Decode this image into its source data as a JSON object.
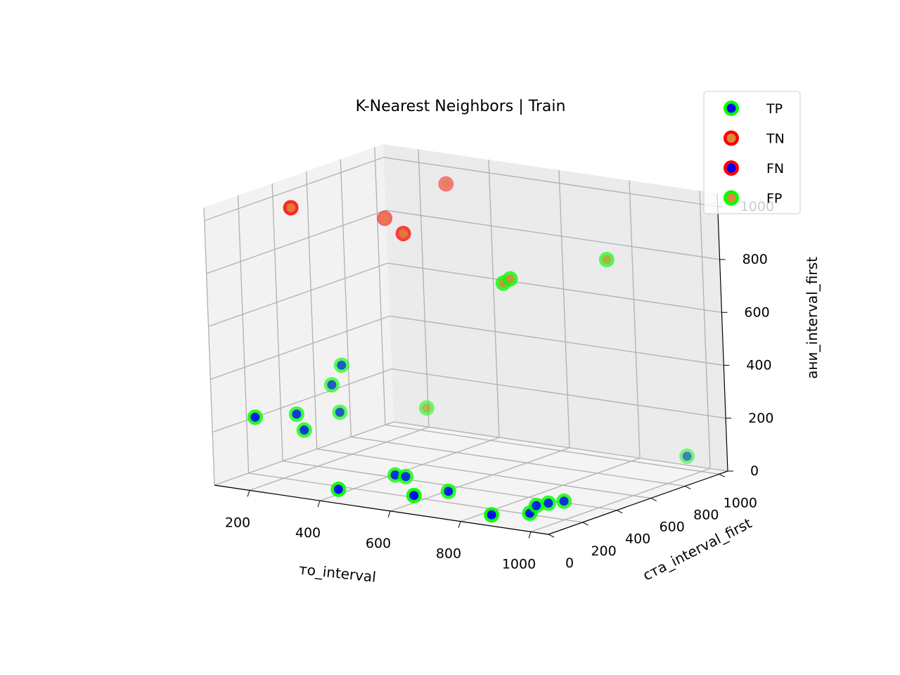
{
  "chart_data": {
    "type": "scatter3d",
    "title": "K-Nearest Neighbors | Train",
    "xlabel": "то_interval",
    "ylabel": "ста_interval_first",
    "zlabel": "ани_interval_first",
    "xticks": [
      200,
      400,
      600,
      800,
      1000
    ],
    "yticks": [
      0,
      200,
      400,
      600,
      800,
      1000
    ],
    "zticks": [
      0,
      200,
      400,
      600,
      800,
      1000
    ],
    "xlim": [
      100,
      1050
    ],
    "ylim": [
      0,
      1050
    ],
    "zlim": [
      0,
      1050
    ],
    "grid": true,
    "legend_position": "top-right",
    "colors": {
      "green": "#00ff00",
      "red": "#ff0000",
      "blue": "#0000ff",
      "orange": "#d98a3a"
    },
    "legend": [
      {
        "label": "TP",
        "edge": "#00ff00",
        "face": "#0000ff"
      },
      {
        "label": "TN",
        "edge": "#ff0000",
        "face": "#d98a3a"
      },
      {
        "label": "FN",
        "edge": "#ff0000",
        "face": "#0000ff"
      },
      {
        "label": "FP",
        "edge": "#00ff00",
        "face": "#d98a3a"
      }
    ],
    "series": [
      {
        "name": "TP",
        "points": [
          {
            "x": 100,
            "y": 250,
            "z": 200
          },
          {
            "x": 100,
            "y": 700,
            "z": 220
          },
          {
            "x": 120,
            "y": 450,
            "z": 170
          },
          {
            "x": 120,
            "y": 700,
            "z": 120
          },
          {
            "x": 130,
            "y": 700,
            "z": 300
          },
          {
            "x": 150,
            "y": 430,
            "z": 120
          },
          {
            "x": 380,
            "y": 150,
            "z": 5
          },
          {
            "x": 420,
            "y": 400,
            "z": 10
          },
          {
            "x": 450,
            "y": 400,
            "z": 10
          },
          {
            "x": 620,
            "y": 100,
            "z": 40
          },
          {
            "x": 620,
            "y": 300,
            "z": 10
          },
          {
            "x": 840,
            "y": 100,
            "z": 10
          },
          {
            "x": 870,
            "y": 300,
            "z": 5
          },
          {
            "x": 880,
            "y": 350,
            "z": 5
          },
          {
            "x": 900,
            "y": 200,
            "z": 5
          },
          {
            "x": 900,
            "y": 400,
            "z": 5
          },
          {
            "x": 960,
            "y": 1000,
            "z": 50
          }
        ]
      },
      {
        "name": "TN",
        "points": [
          {
            "x": 200,
            "y": 300,
            "z": 1000
          },
          {
            "x": 220,
            "y": 800,
            "z": 850
          },
          {
            "x": 300,
            "y": 1000,
            "z": 950
          },
          {
            "x": 420,
            "y": 500,
            "z": 900
          }
        ]
      },
      {
        "name": "FP",
        "points": [
          {
            "x": 270,
            "y": 900,
            "z": 120
          },
          {
            "x": 750,
            "y": 400,
            "z": 800
          },
          {
            "x": 770,
            "y": 400,
            "z": 820
          },
          {
            "x": 900,
            "y": 700,
            "z": 850
          }
        ]
      }
    ]
  }
}
